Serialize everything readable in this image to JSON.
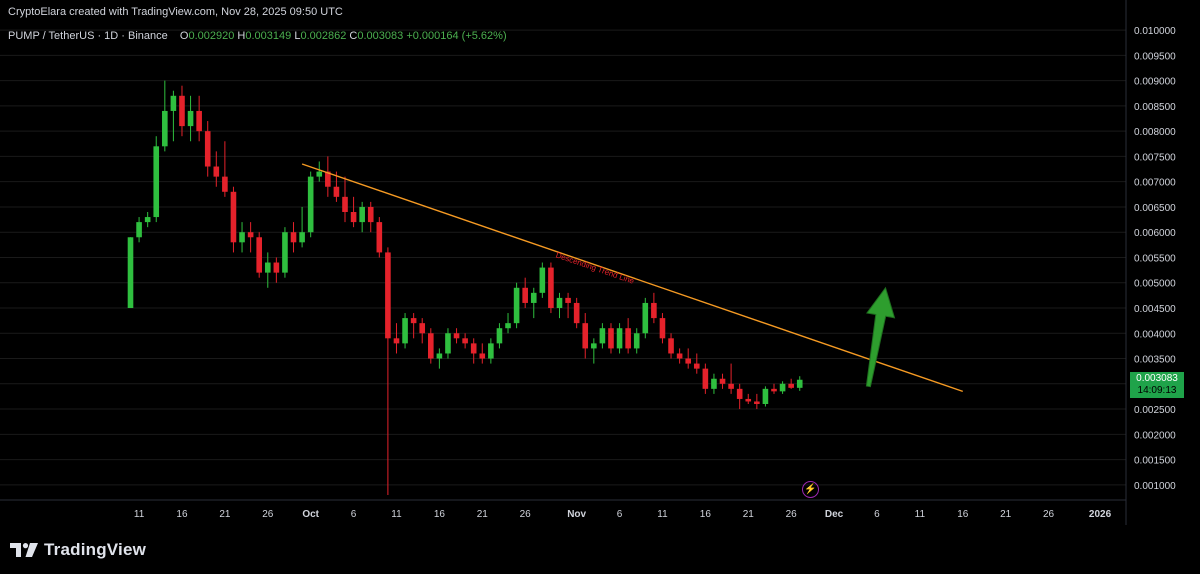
{
  "header": {
    "credit": "CryptoElara created with TradingView.com, Nov 28, 2025 09:50 UTC",
    "symbol": "PUMP / TetherUS · 1D · Binance",
    "o_label": "O",
    "o_value": "0.002920",
    "h_label": "H",
    "h_value": "0.003149",
    "l_label": "L",
    "l_value": "0.002862",
    "c_label": "C",
    "c_value": "0.003083",
    "change": "+0.000164 (+5.62%)"
  },
  "price_badge": {
    "price": "0.003083",
    "countdown": "14:09:13"
  },
  "logo": {
    "text": "TradingView",
    "icon": "tradingview-logo-icon"
  },
  "indicator": {
    "icon": "lightning-bolt-icon"
  },
  "colors": {
    "up": "#2fbf3f",
    "down": "#e5222b",
    "trend": "#f59a23",
    "arrow": "#2e9e2e",
    "grid": "#1a1a1a",
    "text": "#d1d4dc"
  },
  "chart_data": {
    "type": "candlestick",
    "x_start": "2025-09-10",
    "ylim": [
      0.0007,
      0.0102
    ],
    "y_ticks": [
      "0.010000",
      "0.009500",
      "0.009000",
      "0.008500",
      "0.008000",
      "0.007500",
      "0.007000",
      "0.006500",
      "0.006000",
      "0.005500",
      "0.005000",
      "0.004500",
      "0.004000",
      "0.003500",
      "0.003000",
      "0.002500",
      "0.002000",
      "0.001500",
      "0.001000"
    ],
    "x_ticks": [
      {
        "label": "11",
        "day": 1
      },
      {
        "label": "16",
        "day": 6
      },
      {
        "label": "21",
        "day": 11
      },
      {
        "label": "26",
        "day": 16
      },
      {
        "label": "Oct",
        "day": 21
      },
      {
        "label": "6",
        "day": 26
      },
      {
        "label": "11",
        "day": 31
      },
      {
        "label": "16",
        "day": 36
      },
      {
        "label": "21",
        "day": 41
      },
      {
        "label": "26",
        "day": 46
      },
      {
        "label": "Nov",
        "day": 52
      },
      {
        "label": "6",
        "day": 57
      },
      {
        "label": "11",
        "day": 62
      },
      {
        "label": "16",
        "day": 67
      },
      {
        "label": "21",
        "day": 72
      },
      {
        "label": "26",
        "day": 77
      },
      {
        "label": "Dec",
        "day": 82
      },
      {
        "label": "6",
        "day": 87
      },
      {
        "label": "11",
        "day": 92
      },
      {
        "label": "16",
        "day": 97
      },
      {
        "label": "21",
        "day": 102
      },
      {
        "label": "26",
        "day": 107
      },
      {
        "label": "2026",
        "day": 113
      }
    ],
    "candles": [
      [
        0.0045,
        0.0059,
        0.0045,
        0.0059
      ],
      [
        0.0059,
        0.0063,
        0.0058,
        0.0062
      ],
      [
        0.0062,
        0.0064,
        0.0061,
        0.0063
      ],
      [
        0.0063,
        0.0079,
        0.0062,
        0.0077
      ],
      [
        0.0077,
        0.009,
        0.0076,
        0.0084
      ],
      [
        0.0084,
        0.0088,
        0.0078,
        0.0087
      ],
      [
        0.0087,
        0.0089,
        0.0079,
        0.0081
      ],
      [
        0.0081,
        0.0087,
        0.0078,
        0.0084
      ],
      [
        0.0084,
        0.0087,
        0.0078,
        0.008
      ],
      [
        0.008,
        0.0082,
        0.0071,
        0.0073
      ],
      [
        0.0073,
        0.0076,
        0.0069,
        0.0071
      ],
      [
        0.0071,
        0.0078,
        0.0067,
        0.0068
      ],
      [
        0.0068,
        0.0069,
        0.0056,
        0.0058
      ],
      [
        0.0058,
        0.0062,
        0.0056,
        0.006
      ],
      [
        0.006,
        0.0062,
        0.0056,
        0.0059
      ],
      [
        0.0059,
        0.006,
        0.0051,
        0.0052
      ],
      [
        0.0052,
        0.0056,
        0.0049,
        0.0054
      ],
      [
        0.0054,
        0.0055,
        0.005,
        0.0052
      ],
      [
        0.0052,
        0.0061,
        0.0051,
        0.006
      ],
      [
        0.006,
        0.0062,
        0.0056,
        0.0058
      ],
      [
        0.0058,
        0.0065,
        0.0057,
        0.006
      ],
      [
        0.006,
        0.0072,
        0.0059,
        0.0071
      ],
      [
        0.0071,
        0.0074,
        0.007,
        0.0072
      ],
      [
        0.0072,
        0.0075,
        0.0067,
        0.0069
      ],
      [
        0.0069,
        0.0072,
        0.0066,
        0.0067
      ],
      [
        0.0067,
        0.0071,
        0.0062,
        0.0064
      ],
      [
        0.0064,
        0.0067,
        0.0061,
        0.0062
      ],
      [
        0.0062,
        0.0066,
        0.006,
        0.0065
      ],
      [
        0.0065,
        0.0066,
        0.006,
        0.0062
      ],
      [
        0.0062,
        0.0063,
        0.0055,
        0.0056
      ],
      [
        0.0056,
        0.0057,
        0.0008,
        0.0039
      ],
      [
        0.0039,
        0.0042,
        0.0036,
        0.0038
      ],
      [
        0.0038,
        0.0044,
        0.0037,
        0.0043
      ],
      [
        0.0043,
        0.0044,
        0.0039,
        0.0042
      ],
      [
        0.0042,
        0.0043,
        0.0038,
        0.004
      ],
      [
        0.004,
        0.0041,
        0.0034,
        0.0035
      ],
      [
        0.0035,
        0.0037,
        0.0033,
        0.0036
      ],
      [
        0.0036,
        0.0041,
        0.0035,
        0.004
      ],
      [
        0.004,
        0.0041,
        0.0038,
        0.0039
      ],
      [
        0.0039,
        0.004,
        0.0037,
        0.0038
      ],
      [
        0.0038,
        0.0039,
        0.0034,
        0.0036
      ],
      [
        0.0036,
        0.0038,
        0.0034,
        0.0035
      ],
      [
        0.0035,
        0.0039,
        0.0034,
        0.0038
      ],
      [
        0.0038,
        0.0042,
        0.0037,
        0.0041
      ],
      [
        0.0041,
        0.0044,
        0.004,
        0.0042
      ],
      [
        0.0042,
        0.005,
        0.0041,
        0.0049
      ],
      [
        0.0049,
        0.0051,
        0.0045,
        0.0046
      ],
      [
        0.0046,
        0.0049,
        0.0043,
        0.0048
      ],
      [
        0.0048,
        0.0054,
        0.0047,
        0.0053
      ],
      [
        0.0053,
        0.0054,
        0.0044,
        0.0045
      ],
      [
        0.0045,
        0.0048,
        0.0043,
        0.0047
      ],
      [
        0.0047,
        0.0048,
        0.0043,
        0.0046
      ],
      [
        0.0046,
        0.0047,
        0.0041,
        0.0042
      ],
      [
        0.0042,
        0.0044,
        0.0035,
        0.0037
      ],
      [
        0.0037,
        0.0039,
        0.0034,
        0.0038
      ],
      [
        0.0038,
        0.0042,
        0.0037,
        0.0041
      ],
      [
        0.0041,
        0.0042,
        0.0036,
        0.0037
      ],
      [
        0.0037,
        0.0042,
        0.0036,
        0.0041
      ],
      [
        0.0041,
        0.0043,
        0.0036,
        0.0037
      ],
      [
        0.0037,
        0.0041,
        0.0036,
        0.004
      ],
      [
        0.004,
        0.0047,
        0.0039,
        0.0046
      ],
      [
        0.0046,
        0.0048,
        0.0042,
        0.0043
      ],
      [
        0.0043,
        0.0044,
        0.0038,
        0.0039
      ],
      [
        0.0039,
        0.004,
        0.0035,
        0.0036
      ],
      [
        0.0036,
        0.0037,
        0.0034,
        0.0035
      ],
      [
        0.0035,
        0.0037,
        0.0033,
        0.0034
      ],
      [
        0.0034,
        0.0036,
        0.0032,
        0.0033
      ],
      [
        0.0033,
        0.0034,
        0.0028,
        0.0029
      ],
      [
        0.0029,
        0.0032,
        0.0028,
        0.0031
      ],
      [
        0.0031,
        0.0032,
        0.0029,
        0.003
      ],
      [
        0.003,
        0.0034,
        0.0028,
        0.0029
      ],
      [
        0.0029,
        0.003,
        0.0025,
        0.0027
      ],
      [
        0.0027,
        0.0028,
        0.0026,
        0.00265
      ],
      [
        0.00265,
        0.0028,
        0.0025,
        0.0026
      ],
      [
        0.0026,
        0.00295,
        0.00255,
        0.0029
      ],
      [
        0.0029,
        0.003,
        0.0028,
        0.00285
      ],
      [
        0.00285,
        0.00305,
        0.0028,
        0.003
      ],
      [
        0.003,
        0.0031,
        0.0029,
        0.00292
      ],
      [
        0.00292,
        0.00315,
        0.00286,
        0.00308
      ]
    ],
    "trend_line": {
      "label": "Descending Trend Line",
      "start": [
        20,
        0.00735
      ],
      "end": [
        97,
        0.00285
      ]
    },
    "arrow": {
      "from": [
        86,
        0.00295
      ],
      "to": [
        88,
        0.0049
      ]
    }
  }
}
